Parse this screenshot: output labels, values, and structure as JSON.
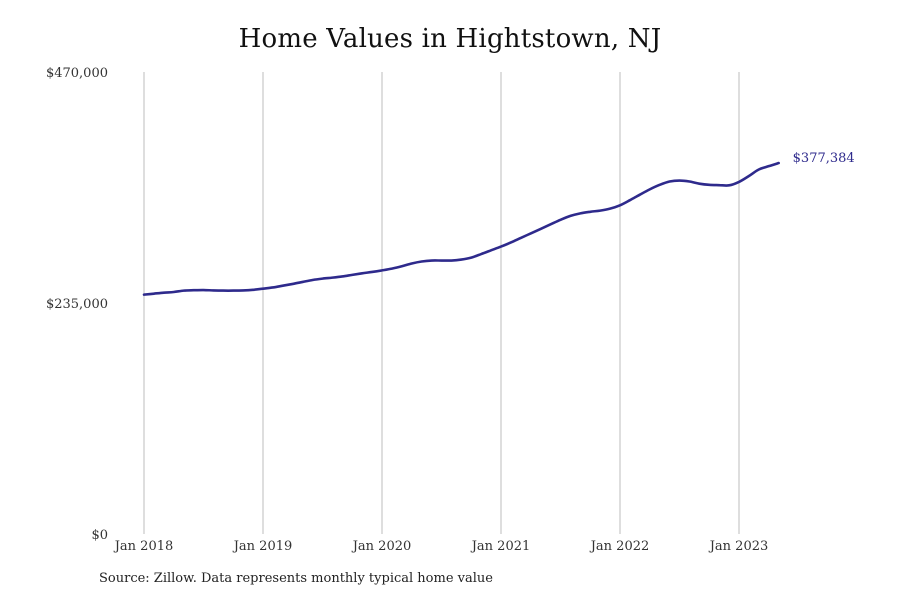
{
  "chart_data": {
    "type": "line",
    "title": "Home Values in Hightstown, NJ",
    "footer": "Source: Zillow. Data represents monthly typical home value",
    "xlabel": "",
    "ylabel": "",
    "ylim": [
      0,
      470000
    ],
    "y_ticks": [
      {
        "value": 0,
        "label": "$0"
      },
      {
        "value": 235000,
        "label": "$235,000"
      },
      {
        "value": 470000,
        "label": "$470,000"
      }
    ],
    "x_ticks": [
      {
        "date": "2018-01",
        "label": "Jan 2018"
      },
      {
        "date": "2019-01",
        "label": "Jan 2019"
      },
      {
        "date": "2020-01",
        "label": "Jan 2020"
      },
      {
        "date": "2021-01",
        "label": "Jan 2021"
      },
      {
        "date": "2022-01",
        "label": "Jan 2022"
      },
      {
        "date": "2023-01",
        "label": "Jan 2023"
      }
    ],
    "grid": "vertical",
    "line_color": "#2e2a8c",
    "end_label": "$377,384",
    "series": [
      {
        "x": [
          "2018-01",
          "2018-02",
          "2018-03",
          "2018-04",
          "2018-05",
          "2018-06",
          "2018-07",
          "2018-08",
          "2018-09",
          "2018-10",
          "2018-11",
          "2018-12",
          "2019-01",
          "2019-02",
          "2019-03",
          "2019-04",
          "2019-05",
          "2019-06",
          "2019-07",
          "2019-08",
          "2019-09",
          "2019-10",
          "2019-11",
          "2019-12",
          "2020-01",
          "2020-02",
          "2020-03",
          "2020-04",
          "2020-05",
          "2020-06",
          "2020-07",
          "2020-08",
          "2020-09",
          "2020-10",
          "2020-11",
          "2020-12",
          "2021-01",
          "2021-02",
          "2021-03",
          "2021-04",
          "2021-05",
          "2021-06",
          "2021-07",
          "2021-08",
          "2021-09",
          "2021-10",
          "2021-11",
          "2021-12",
          "2022-01",
          "2022-02",
          "2022-03",
          "2022-04",
          "2022-05",
          "2022-06",
          "2022-07",
          "2022-08",
          "2022-09",
          "2022-10",
          "2022-11",
          "2022-12",
          "2023-01",
          "2023-02",
          "2023-03",
          "2023-04",
          "2023-05"
        ],
        "values": [
          243500,
          244500,
          245500,
          246200,
          247600,
          248000,
          248200,
          247800,
          247600,
          247600,
          247800,
          248400,
          249600,
          250800,
          252600,
          254400,
          256400,
          258400,
          259800,
          260800,
          262000,
          263600,
          265200,
          266600,
          268200,
          270000,
          272400,
          275200,
          277200,
          278200,
          278200,
          278200,
          279200,
          281200,
          284800,
          288600,
          292400,
          296600,
          301200,
          305800,
          310400,
          315000,
          319600,
          323600,
          326200,
          327800,
          329000,
          331000,
          334400,
          339600,
          345200,
          350600,
          355200,
          358600,
          359600,
          358600,
          356400,
          355200,
          354900,
          354700,
          358200,
          364200,
          370800,
          374200,
          377384
        ]
      }
    ]
  }
}
